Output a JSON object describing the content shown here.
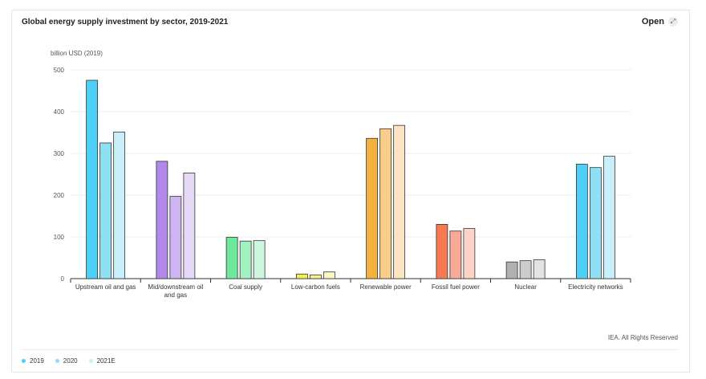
{
  "header": {
    "title": "Global energy supply investment by sector, 2019-2021",
    "open_label": "Open",
    "open_icon": "expand-icon"
  },
  "footer": {
    "credit": "IEA. All Rights Reserved"
  },
  "chart_data": {
    "type": "bar",
    "title": "Global energy supply investment by sector, 2019-2021",
    "xlabel": "",
    "ylabel": "billion USD (2019)",
    "ylim": [
      0,
      500
    ],
    "yticks": [
      0,
      100,
      200,
      300,
      400,
      500
    ],
    "grid": true,
    "legend_position": "bottom-left",
    "categories": [
      "Upstream oil and gas",
      "Mid/downstream oil and gas",
      "Coal supply",
      "Low-carbon fuels",
      "Renewable power",
      "Fossil fuel power",
      "Nuclear",
      "Electricity networks"
    ],
    "series": [
      {
        "name": "2019",
        "values": [
          475,
          281,
          99,
          11,
          336,
          130,
          40,
          274
        ]
      },
      {
        "name": "2020",
        "values": [
          325,
          197,
          90,
          9,
          359,
          114,
          43,
          266
        ]
      },
      {
        "name": "2021E",
        "values": [
          351,
          253,
          91,
          16,
          367,
          120,
          45,
          293
        ]
      }
    ],
    "category_colors": [
      [
        "#4dd0f5",
        "#8fdff5",
        "#c9effa"
      ],
      [
        "#b388eb",
        "#cfb3f2",
        "#e6d9f7"
      ],
      [
        "#6ee89a",
        "#a3f0c0",
        "#cff7df"
      ],
      [
        "#f2ee5a",
        "#f5f28f",
        "#f9f7c2"
      ],
      [
        "#f5b042",
        "#f8cd8a",
        "#fbe4c2"
      ],
      [
        "#f77a52",
        "#f9a995",
        "#fbd3c7"
      ],
      [
        "#b0b0b0",
        "#cccccc",
        "#e3e3e3"
      ],
      [
        "#4dd0f5",
        "#8fdff5",
        "#c9effa"
      ]
    ],
    "legend_colors": [
      "#4dd0f5",
      "#8fdff5",
      "#c9effa"
    ]
  }
}
